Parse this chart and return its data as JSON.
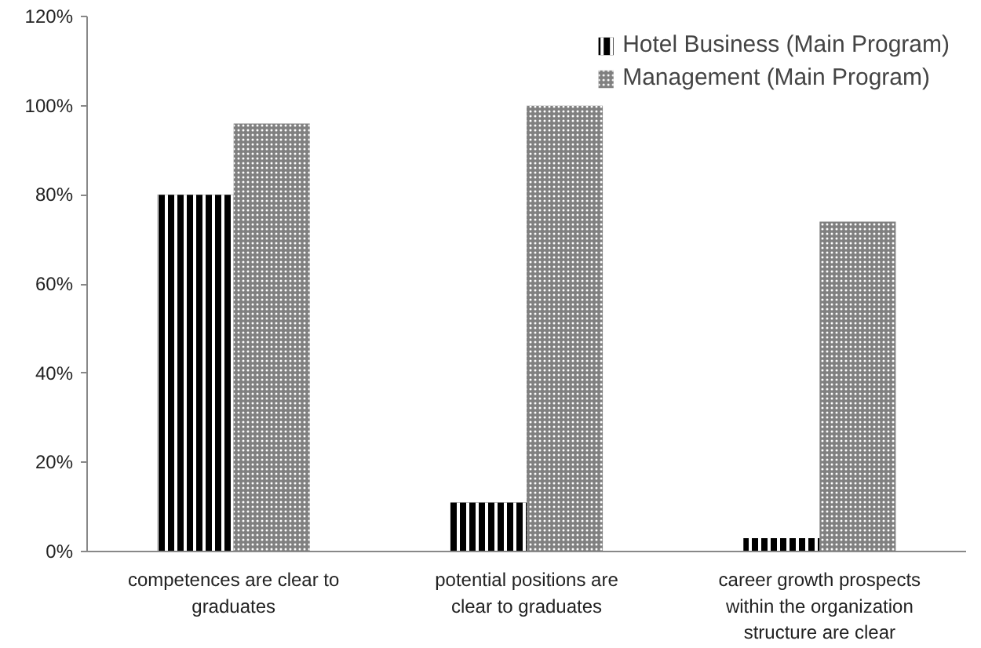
{
  "chart_data": {
    "type": "bar",
    "categories": [
      "competences are clear to graduates",
      "potential positions are clear to graduates",
      "career growth prospects within the organization structure are clear"
    ],
    "series": [
      {
        "name": "Hotel Business (Main Program)",
        "color": "#000000",
        "values": [
          80,
          11,
          3
        ]
      },
      {
        "name": "Management (Main Program)",
        "color": "#808080",
        "values": [
          96,
          100,
          74
        ]
      }
    ],
    "ylim": [
      0,
      120
    ],
    "yticks": [
      {
        "value": 0,
        "label": "0%"
      },
      {
        "value": 20,
        "label": "20%"
      },
      {
        "value": 40,
        "label": "40%"
      },
      {
        "value": 60,
        "label": "60%"
      },
      {
        "value": 80,
        "label": "80%"
      },
      {
        "value": 100,
        "label": "100%"
      },
      {
        "value": 120,
        "label": "120%"
      }
    ],
    "grid": false,
    "legend": "top right"
  }
}
